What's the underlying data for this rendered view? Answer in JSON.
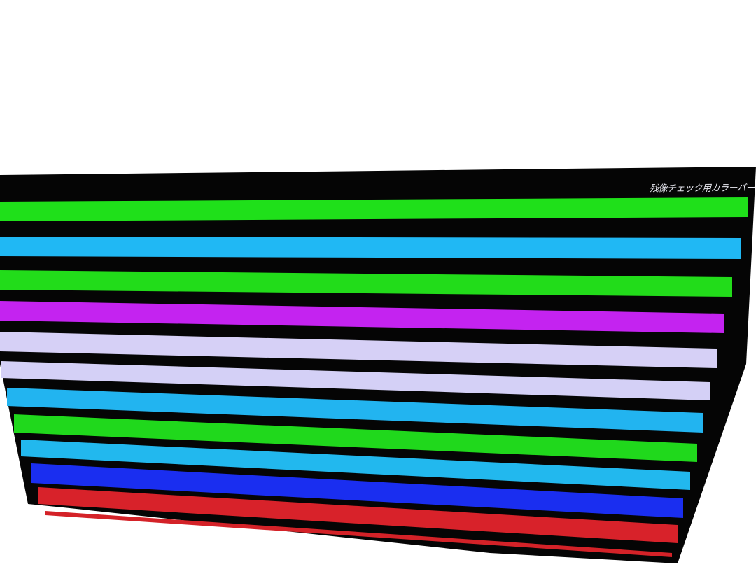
{
  "screen": {
    "caption": "残像チェック用カラーバー",
    "frame_color": "#050505",
    "background": "#ffffff"
  },
  "bars": [
    {
      "color": "#1fe01a"
    },
    {
      "color": "#20b8f4"
    },
    {
      "color": "#22dc1a"
    },
    {
      "color": "#c423f0"
    },
    {
      "color": "#d6d0f6"
    },
    {
      "color": "#d4d0f6"
    },
    {
      "color": "#22b4f0"
    },
    {
      "color": "#20d81c"
    },
    {
      "color": "#22b8ee"
    },
    {
      "color": "#1a2ef0"
    },
    {
      "color": "#d8222a"
    },
    {
      "color": "#d42228"
    }
  ]
}
